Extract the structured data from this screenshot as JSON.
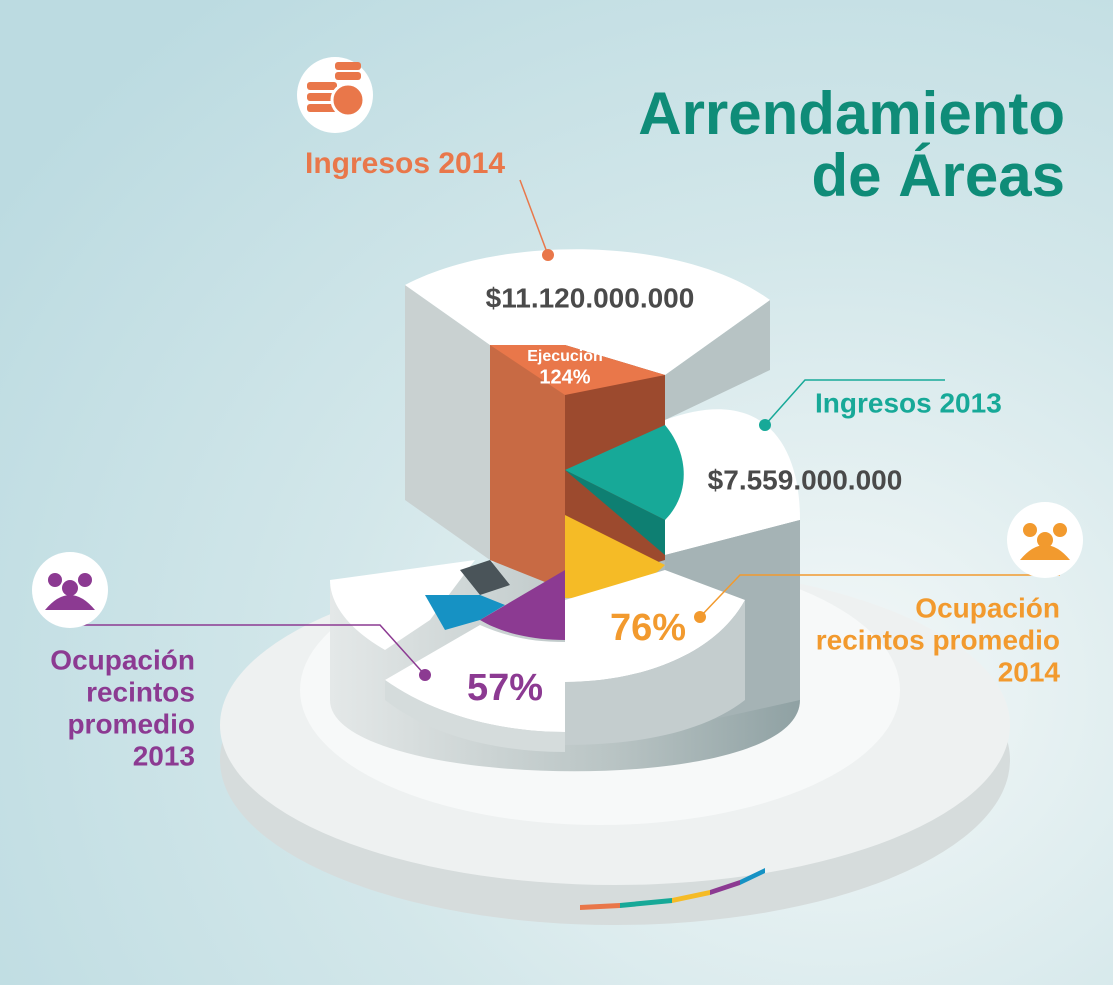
{
  "title": {
    "line1": "Arrendamiento",
    "line2": "de Áreas"
  },
  "ingresos_2014": {
    "label": "Ingresos 2014",
    "value": "$11.120.000.000",
    "execution_label": "Ejecución",
    "execution_value": "124%"
  },
  "ingresos_2013": {
    "label": "Ingresos 2013",
    "value": "$7.559.000.000"
  },
  "ocupacion_2014": {
    "lines": [
      "Ocupación",
      "recintos promedio",
      "2014"
    ],
    "value": "76%"
  },
  "ocupacion_2013": {
    "lines": [
      "Ocupación",
      "recintos",
      "promedio",
      "2013"
    ],
    "value": "57%"
  }
}
